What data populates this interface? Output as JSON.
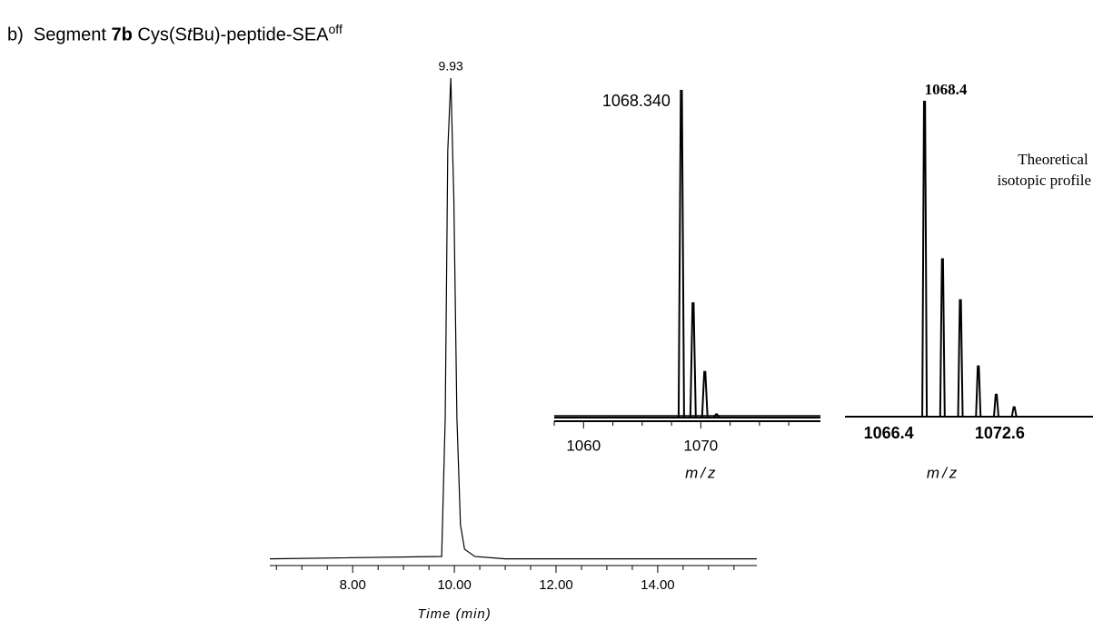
{
  "heading": {
    "label": "b)",
    "prefix": "Segment ",
    "bold": "7b",
    "middle": " Cys(S",
    "italic": "t",
    "suffix": "Bu)-peptide-SEA",
    "superscript": "off"
  },
  "chart_data": [
    {
      "type": "line",
      "xlabel": "Time (min)",
      "annotation": "9.93",
      "annotation_x": 9.93,
      "color": "#000000",
      "x": [
        6.37,
        9.75,
        9.82,
        9.87,
        9.93,
        9.99,
        10.05,
        10.12,
        10.2,
        10.4,
        11,
        15.95
      ],
      "values": [
        1,
        1.5,
        30,
        85,
        100,
        75,
        30,
        8,
        3,
        1.5,
        1,
        1
      ],
      "xlim": [
        6.37,
        15.95
      ],
      "ylim": [
        0,
        100
      ],
      "xticks": [
        {
          "value": 8,
          "label": "8.00"
        },
        {
          "value": 10,
          "label": "10.00"
        },
        {
          "value": 12,
          "label": "12.00"
        },
        {
          "value": 14,
          "label": "14.00"
        }
      ],
      "xminorticks": [
        6.5,
        7,
        7.5,
        8.5,
        9,
        9.5,
        10.5,
        11,
        11.5,
        12.5,
        13,
        13.5,
        14.5,
        15,
        15.5
      ]
    },
    {
      "type": "stem",
      "xlabel": "m/z",
      "annotation": "1068.340",
      "color": "#000000",
      "x": [
        1068.34,
        1069.34,
        1070.34,
        1071.34
      ],
      "values": [
        100,
        35,
        14,
        1
      ],
      "xlim": [
        1057.5,
        1080.2
      ],
      "ylim": [
        0,
        100
      ],
      "xticks": [
        1060,
        1070
      ],
      "xminorticks": [
        1057.5,
        1062.5,
        1065,
        1067.5,
        1072.5,
        1075,
        1077.5
      ]
    },
    {
      "type": "stem",
      "xlabel": "m/z",
      "annotation": "1068.4",
      "note": [
        "Theoretical",
        "isotopic profile"
      ],
      "color": "#000000",
      "x": [
        1068.4,
        1069.4,
        1070.4,
        1071.4,
        1072.4,
        1073.4
      ],
      "values": [
        100,
        50,
        37,
        16,
        7,
        3
      ],
      "xlim": [
        1063.96,
        1077.8
      ],
      "ylim": [
        0,
        100
      ],
      "xticks": [
        1066.4,
        1072.6
      ]
    }
  ]
}
